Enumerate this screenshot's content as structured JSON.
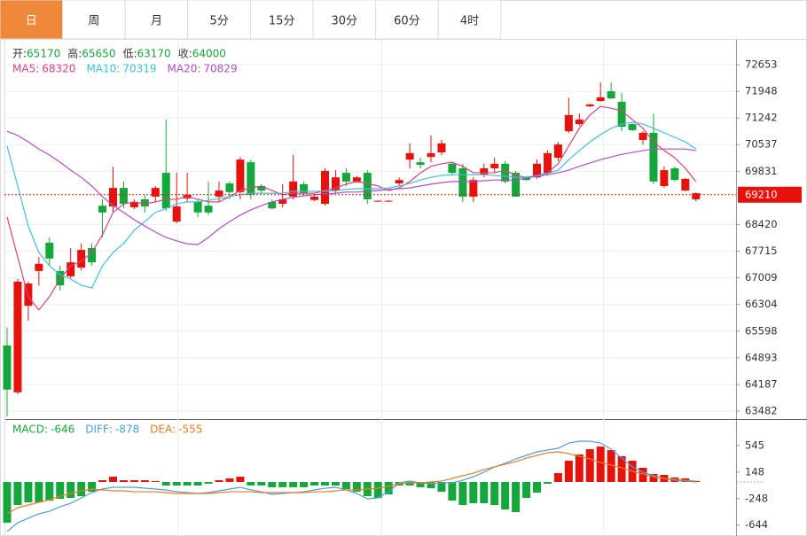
{
  "tabs": [
    "日",
    "周",
    "月",
    "5分",
    "15分",
    "30分",
    "60分",
    "4时"
  ],
  "active_tab": 0,
  "info": {
    "labels": [
      "开:",
      "高:",
      "低:",
      "收:"
    ],
    "values": [
      65170,
      65650,
      63170,
      64000
    ],
    "color": "#14a83c"
  },
  "chart_data": [
    {
      "type": "candlestick",
      "up_color": "#e8120c",
      "down_color": "#14a83c",
      "ylim": [
        63271,
        73310
      ],
      "yticks": [
        72653,
        71948,
        71242,
        70537,
        69831,
        68420,
        67715,
        67009,
        66304,
        65598,
        64893,
        64187,
        63482
      ],
      "grid": true,
      "last_price": 69210,
      "candles": {
        "open": [
          65220,
          63980,
          66270,
          67190,
          67940,
          67190,
          67050,
          67280,
          67800,
          68920,
          68900,
          69390,
          68880,
          69090,
          69160,
          69790,
          68500,
          69110,
          69020,
          68920,
          69160,
          69510,
          69280,
          70070,
          69440,
          69020,
          68970,
          69160,
          69490,
          69070,
          68970,
          69320,
          69790,
          69560,
          69790,
          69030,
          69030,
          69510,
          70140,
          70070,
          70210,
          70330,
          70030,
          69910,
          69160,
          69750,
          69910,
          70030,
          69790,
          69670,
          69670,
          69790,
          70190,
          70890,
          71080,
          71550,
          71690,
          71950,
          71670,
          71080,
          70660,
          70850,
          69440,
          69910,
          69320,
          69090
        ],
        "high": [
          65690,
          66980,
          66910,
          67560,
          68080,
          67330,
          67800,
          67920,
          67920,
          69090,
          69950,
          69560,
          69090,
          69200,
          69440,
          71200,
          69790,
          69790,
          69090,
          69560,
          69560,
          69560,
          70210,
          70140,
          69490,
          69090,
          69490,
          70260,
          69560,
          69210,
          69910,
          69860,
          69910,
          69700,
          69860,
          69060,
          69060,
          69670,
          70570,
          70190,
          70780,
          70660,
          70070,
          70030,
          69670,
          70030,
          70190,
          70100,
          69840,
          69700,
          70140,
          70380,
          70610,
          71780,
          71360,
          71620,
          72180,
          72180,
          71900,
          71100,
          70890,
          71360,
          69960,
          69960,
          69650,
          69270
        ],
        "low": [
          63340,
          63930,
          65870,
          66810,
          67330,
          66670,
          67000,
          67210,
          67330,
          68080,
          68740,
          68850,
          68830,
          68740,
          69020,
          68780,
          68450,
          69020,
          68620,
          68670,
          69020,
          69090,
          69090,
          69090,
          69250,
          68810,
          68880,
          69090,
          69160,
          69040,
          68920,
          69250,
          69440,
          69530,
          68970,
          69020,
          69020,
          69440,
          69910,
          69910,
          70070,
          70260,
          69720,
          69020,
          69020,
          69670,
          69790,
          69510,
          69160,
          69580,
          69630,
          69720,
          70100,
          70850,
          71040,
          71530,
          71670,
          71740,
          70890,
          70900,
          70540,
          69490,
          69390,
          69560,
          69300,
          69040
        ],
        "close": [
          64050,
          66910,
          66860,
          67380,
          67520,
          66810,
          67420,
          67750,
          67420,
          68740,
          69390,
          68970,
          69020,
          68900,
          69390,
          68850,
          68900,
          69210,
          68740,
          68740,
          69320,
          69280,
          70140,
          69210,
          69320,
          68850,
          69090,
          69560,
          69250,
          69160,
          69840,
          69670,
          69560,
          69670,
          69090,
          69050,
          69050,
          69600,
          70310,
          70000,
          70310,
          70570,
          69790,
          69160,
          69600,
          69910,
          70030,
          69560,
          69160,
          69600,
          70030,
          70310,
          70540,
          71320,
          71200,
          71600,
          71790,
          71760,
          71010,
          70920,
          70850,
          69560,
          69860,
          69600,
          69630,
          69250
        ]
      },
      "series": [
        {
          "name": "MA5",
          "label_value": 68320,
          "color": "#e0407e",
          "values": [
            68620,
            67560,
            66510,
            66160,
            66510,
            66980,
            67330,
            67450,
            67680,
            68150,
            68740,
            68970,
            69020,
            68970,
            69020,
            69090,
            69090,
            69160,
            69090,
            69020,
            69020,
            69160,
            69320,
            69390,
            69440,
            69320,
            69210,
            69250,
            69250,
            69250,
            69320,
            69390,
            69490,
            69560,
            69510,
            69440,
            69320,
            69390,
            69560,
            69790,
            69960,
            70030,
            70070,
            69960,
            69790,
            69790,
            69790,
            69860,
            69720,
            69670,
            69720,
            69790,
            70030,
            70500,
            70970,
            71320,
            71550,
            71500,
            71430,
            71200,
            70970,
            70610,
            70380,
            70190,
            69910,
            69560
          ]
        },
        {
          "name": "MA10",
          "label_value": 70319,
          "color": "#3cc3d6",
          "values": [
            70500,
            69440,
            68380,
            67680,
            67330,
            67090,
            66980,
            66810,
            66740,
            67330,
            67680,
            67920,
            68270,
            68500,
            68740,
            68850,
            68970,
            69020,
            69020,
            69060,
            69110,
            69160,
            69210,
            69250,
            69250,
            69250,
            69250,
            69300,
            69300,
            69300,
            69300,
            69320,
            69350,
            69370,
            69370,
            69370,
            69390,
            69440,
            69510,
            69600,
            69670,
            69720,
            69740,
            69740,
            69740,
            69740,
            69720,
            69700,
            69670,
            69670,
            69720,
            69770,
            69860,
            70140,
            70380,
            70610,
            70800,
            70970,
            71080,
            71130,
            71080,
            70970,
            70850,
            70730,
            70610,
            70420
          ]
        },
        {
          "name": "MA20",
          "label_value": 70829,
          "color": "#b04fc4",
          "values": [
            70890,
            70780,
            70610,
            70420,
            70260,
            70070,
            69860,
            69670,
            69440,
            69160,
            68920,
            68740,
            68550,
            68380,
            68220,
            68080,
            67990,
            67910,
            67890,
            68080,
            68310,
            68500,
            68670,
            68810,
            68920,
            69020,
            69090,
            69140,
            69180,
            69210,
            69230,
            69250,
            69280,
            69280,
            69300,
            69320,
            69350,
            69370,
            69390,
            69440,
            69490,
            69530,
            69560,
            69560,
            69560,
            69580,
            69600,
            69600,
            69600,
            69650,
            69700,
            69740,
            69790,
            69860,
            69960,
            70050,
            70140,
            70210,
            70280,
            70330,
            70380,
            70420,
            70420,
            70420,
            70420,
            70380
          ]
        }
      ]
    },
    {
      "type": "macd",
      "up_color": "#e8120c",
      "down_color": "#14a83c",
      "ylim": [
        -807,
        913
      ],
      "yticks": [
        545,
        148,
        -248,
        -644
      ],
      "series": [
        {
          "name": "MACD",
          "label_value": -646,
          "color": "#14a83c",
          "values": [
            -609,
            -344,
            -304,
            -304,
            -278,
            -251,
            -238,
            -212,
            -146,
            26,
            79,
            26,
            26,
            26,
            13,
            -53,
            -53,
            -53,
            -53,
            -26,
            26,
            53,
            79,
            -53,
            -53,
            -79,
            -79,
            -79,
            -79,
            -53,
            -53,
            -53,
            -106,
            -146,
            -212,
            -238,
            -185,
            -53,
            -53,
            -79,
            -93,
            -146,
            -278,
            -344,
            -318,
            -318,
            -344,
            -410,
            -450,
            -238,
            -159,
            -26,
            132,
            318,
            410,
            489,
            529,
            476,
            384,
            318,
            212,
            119,
            106,
            66,
            53,
            13
          ]
        },
        {
          "name": "DIFF",
          "label_value": -878,
          "color": "#4a9fe0",
          "values": [
            -741,
            -609,
            -542,
            -476,
            -437,
            -370,
            -318,
            -238,
            -159,
            -106,
            -79,
            -79,
            -79,
            -93,
            -106,
            -119,
            -146,
            -159,
            -172,
            -159,
            -132,
            -106,
            -79,
            -119,
            -146,
            -185,
            -172,
            -159,
            -146,
            -119,
            -93,
            -79,
            -119,
            -172,
            -251,
            -238,
            -146,
            -13,
            13,
            -13,
            -26,
            -13,
            -13,
            26,
            79,
            146,
            225,
            278,
            344,
            397,
            450,
            476,
            503,
            582,
            609,
            609,
            582,
            490,
            357,
            225,
            146,
            93,
            53,
            26,
            13,
            0
          ]
        },
        {
          "name": "DEA",
          "label_value": -555,
          "color": "#f07b1e",
          "values": [
            -476,
            -384,
            -344,
            -304,
            -265,
            -212,
            -172,
            -132,
            -106,
            -119,
            -132,
            -132,
            -146,
            -146,
            -146,
            -159,
            -172,
            -172,
            -172,
            -172,
            -159,
            -146,
            -146,
            -146,
            -159,
            -159,
            -159,
            -159,
            -159,
            -146,
            -146,
            -132,
            -119,
            -119,
            -106,
            -93,
            -66,
            -26,
            -13,
            -13,
            0,
            13,
            53,
            93,
            132,
            185,
            225,
            265,
            304,
            357,
            397,
            437,
            450,
            423,
            384,
            344,
            291,
            251,
            212,
            159,
            119,
            79,
            53,
            40,
            26,
            13
          ]
        }
      ]
    }
  ]
}
